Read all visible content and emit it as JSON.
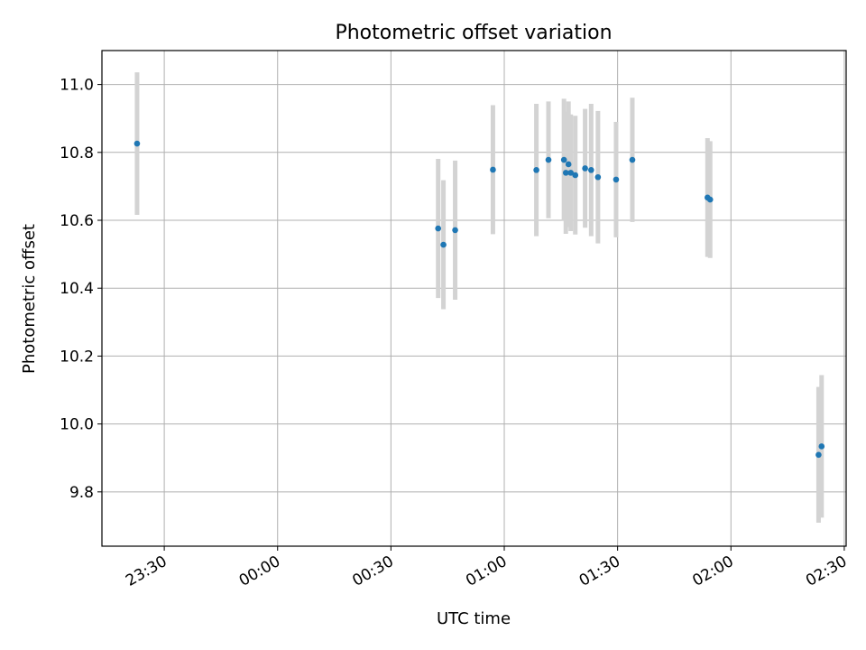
{
  "chart_data": {
    "type": "scatter",
    "title": "Photometric offset variation",
    "xlabel": "UTC time",
    "ylabel": "Photometric offset",
    "x_unit": "UTC time (HH:MM)",
    "xlim": [
      "23:13:30",
      "02:30:30"
    ],
    "ylim": [
      9.64,
      11.1
    ],
    "x_ticks": [
      "23:30",
      "00:00",
      "00:30",
      "01:00",
      "01:30",
      "02:00",
      "02:30"
    ],
    "y_ticks": [
      9.8,
      10.0,
      10.2,
      10.4,
      10.6,
      10.8,
      11.0
    ],
    "grid": true,
    "marker_color": "#1f77b4",
    "errorbar_color": "#d3d3d3",
    "points": [
      {
        "x": "23:22:48",
        "y": 10.826,
        "err": 0.21
      },
      {
        "x": "00:42:30",
        "y": 10.576,
        "err": 0.205
      },
      {
        "x": "00:43:54",
        "y": 10.528,
        "err": 0.19
      },
      {
        "x": "00:47:00",
        "y": 10.571,
        "err": 0.205
      },
      {
        "x": "00:57:00",
        "y": 10.749,
        "err": 0.19
      },
      {
        "x": "01:08:30",
        "y": 10.748,
        "err": 0.195
      },
      {
        "x": "01:11:42",
        "y": 10.778,
        "err": 0.172
      },
      {
        "x": "01:15:48",
        "y": 10.778,
        "err": 0.18
      },
      {
        "x": "01:16:18",
        "y": 10.74,
        "err": 0.18
      },
      {
        "x": "01:17:00",
        "y": 10.765,
        "err": 0.185
      },
      {
        "x": "01:17:36",
        "y": 10.74,
        "err": 0.172
      },
      {
        "x": "01:18:48",
        "y": 10.733,
        "err": 0.175
      },
      {
        "x": "01:21:24",
        "y": 10.753,
        "err": 0.175
      },
      {
        "x": "01:23:00",
        "y": 10.748,
        "err": 0.195
      },
      {
        "x": "01:24:48",
        "y": 10.727,
        "err": 0.195
      },
      {
        "x": "01:29:36",
        "y": 10.72,
        "err": 0.17
      },
      {
        "x": "01:33:54",
        "y": 10.778,
        "err": 0.183
      },
      {
        "x": "01:53:48",
        "y": 10.667,
        "err": 0.175
      },
      {
        "x": "01:54:30",
        "y": 10.661,
        "err": 0.172
      },
      {
        "x": "02:23:12",
        "y": 9.909,
        "err": 0.2
      },
      {
        "x": "02:24:00",
        "y": 9.934,
        "err": 0.21
      }
    ]
  }
}
